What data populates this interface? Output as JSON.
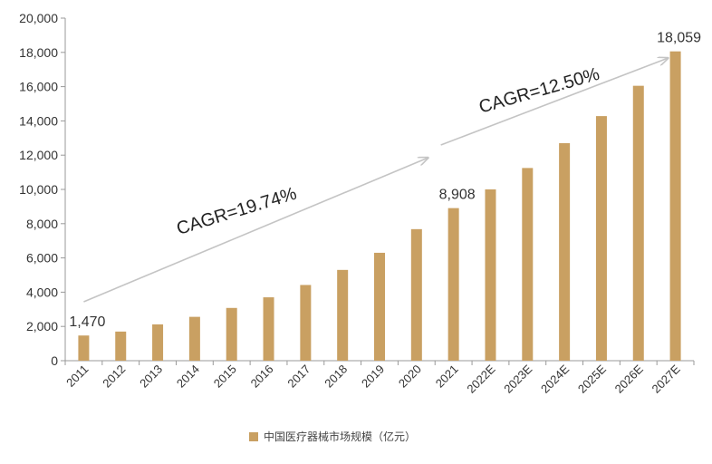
{
  "chart_data": {
    "type": "bar",
    "categories": [
      "2011",
      "2012",
      "2013",
      "2014",
      "2015",
      "2016",
      "2017",
      "2018",
      "2019",
      "2020",
      "2021",
      "2022E",
      "2023E",
      "2024E",
      "2025E",
      "2026E",
      "2027E"
    ],
    "series": [
      {
        "name": "中国医疗器械市场规模（亿元）",
        "values": [
          1470,
          1700,
          2120,
          2560,
          3080,
          3700,
          4420,
          5300,
          6300,
          7680,
          8908,
          10000,
          11250,
          12700,
          14280,
          16050,
          18059
        ],
        "color": "#C9A062"
      }
    ],
    "data_labels": [
      {
        "category": "2011",
        "text": "1,470"
      },
      {
        "category": "2021",
        "text": "8,908"
      },
      {
        "category": "2027E",
        "text": "18,059"
      }
    ],
    "ylim": [
      0,
      20000
    ],
    "yticks": [
      "0",
      "2,000",
      "4,000",
      "6,000",
      "8,000",
      "10,000",
      "12,000",
      "14,000",
      "16,000",
      "18,000",
      "20,000"
    ],
    "annotations": [
      {
        "text": "CAGR=19.74%",
        "from": "2011",
        "to": "2021"
      },
      {
        "text": "CAGR=12.50%",
        "from": "2021",
        "to": "2027E"
      }
    ],
    "legend": {
      "position": "bottom",
      "label": "中国医疗器械市场规模（亿元）"
    },
    "title": "",
    "xlabel": "",
    "ylabel": ""
  }
}
